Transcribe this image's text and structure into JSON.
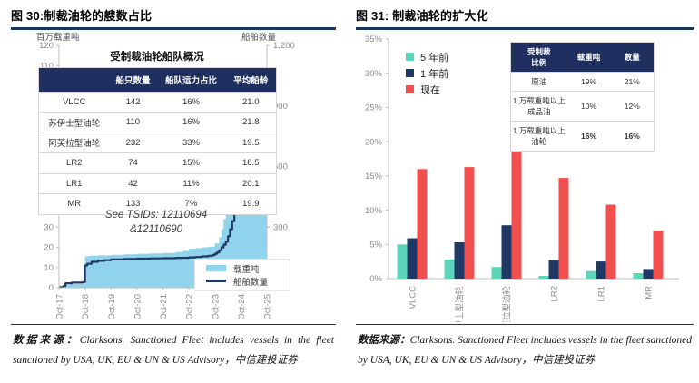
{
  "figures": {
    "left": {
      "title": "图 30:制裁油轮的艘数占比",
      "source_label": "数据来源：",
      "source_text": "Clarksons. Sanctioned Fleet includes vessels in the fleet sanctioned by USA, UK, EU & UN & US Advisory，中信建投证券"
    },
    "right": {
      "title": "图 31: 制裁油轮的扩大化",
      "source_label": "数据来源：",
      "source_text": "Clarksons. Sanctioned Fleet includes vessels in the fleet sanctioned by USA, UK, EU & UN & US Advisory，中信建投证券"
    }
  },
  "colors": {
    "navy": "#1F3864",
    "table_header_navy": "#1F3060",
    "light_blue": "#8FD4EC",
    "teal": "#5CD6B9",
    "red": "#F1504E",
    "title_rule": "#17375E",
    "axis_gray": "#BFBFBF",
    "tick_gray": "#8C8C8C"
  },
  "chart_data": [
    {
      "type": "area",
      "title": "制裁油轮的艘数占比",
      "left_axis": {
        "label": "百万载重吨",
        "lim": [
          0,
          120
        ],
        "ticks": [
          0,
          10,
          20,
          30,
          40,
          50,
          60,
          70,
          80,
          90,
          100,
          110,
          120
        ]
      },
      "right_axis": {
        "label": "船舶数量",
        "lim": [
          0,
          1200
        ],
        "ticks": [
          {
            "v": 0,
            "label": "0"
          },
          {
            "v": 300,
            "label": "300"
          },
          {
            "v": 600,
            "label": "600"
          },
          {
            "v": 900,
            "label": "900"
          },
          {
            "v": 1200,
            "label": "1,200"
          }
        ]
      },
      "x_axis": {
        "range_months": [
          0,
          96
        ],
        "ticks": [
          {
            "m": 0,
            "label": "Oct-17"
          },
          {
            "m": 12,
            "label": "Oct-18"
          },
          {
            "m": 24,
            "label": "Oct-19"
          },
          {
            "m": 36,
            "label": "Oct-20"
          },
          {
            "m": 48,
            "label": "Oct-21"
          },
          {
            "m": 60,
            "label": "Oct-22"
          },
          {
            "m": 72,
            "label": "Oct-23"
          },
          {
            "m": 84,
            "label": "Oct-24"
          },
          {
            "m": 96,
            "label": "Oct-25"
          }
        ]
      },
      "series": [
        {
          "name": "载重吨",
          "kind": "area",
          "axis": "left",
          "color": "#8FD4EC",
          "x": [
            0,
            2,
            3,
            5,
            11,
            12,
            14,
            18,
            24,
            30,
            36,
            42,
            48,
            54,
            57,
            60,
            63,
            66,
            69,
            72,
            74,
            75,
            76,
            77,
            78,
            79,
            80,
            81,
            82,
            83,
            84,
            86,
            88,
            90,
            93,
            96
          ],
          "values": [
            0.5,
            0.8,
            1.5,
            1.8,
            2.0,
            15.5,
            15.8,
            16.0,
            16.3,
            16.5,
            16.8,
            17.0,
            17.2,
            17.6,
            18.2,
            19.3,
            19.6,
            20.0,
            20.3,
            22.0,
            25.0,
            29.0,
            34.0,
            42.0,
            50.0,
            58.0,
            65.0,
            72.0,
            78.0,
            83.0,
            88.0,
            93.0,
            96.0,
            99.0,
            101.0,
            102.0
          ]
        },
        {
          "name": "船舶数量",
          "kind": "line",
          "axis": "right",
          "color": "#1F3864",
          "x": [
            0,
            2,
            3,
            6,
            11,
            12,
            13,
            15,
            18,
            21,
            24,
            30,
            36,
            42,
            48,
            54,
            60,
            63,
            66,
            69,
            71,
            72,
            73,
            74,
            75,
            76,
            77,
            78,
            79,
            80,
            81,
            82,
            83,
            84,
            85,
            86,
            87,
            88,
            89,
            90,
            91,
            92,
            93,
            94,
            95,
            96
          ],
          "values": [
            3,
            8,
            22,
            25,
            28,
            110,
            118,
            128,
            133,
            136,
            140,
            142,
            144,
            145,
            146,
            148,
            150,
            152,
            155,
            158,
            162,
            168,
            175,
            185,
            200,
            213,
            228,
            255,
            290,
            330,
            375,
            425,
            468,
            515,
            555,
            598,
            638,
            675,
            710,
            740,
            770,
            800,
            828,
            852,
            872,
            905
          ]
        }
      ],
      "legend": [
        {
          "label": "载重吨",
          "swatch": "area",
          "color": "#8FD4EC"
        },
        {
          "label": "船舶数量",
          "swatch": "line",
          "color": "#1F3864"
        }
      ],
      "annotation": "See TSIDs: 12110694\n&12110690",
      "inner_table": {
        "title": "受制裁油轮船队概况",
        "headers": [
          "",
          "船只数量",
          "船队运力占比",
          "平均船龄"
        ],
        "rows": [
          [
            "VLCC",
            "142",
            "16%",
            "21.0"
          ],
          [
            "苏伊士型油轮",
            "110",
            "16%",
            "21.8"
          ],
          [
            "阿芙拉型油轮",
            "232",
            "33%",
            "19.5"
          ],
          [
            "LR2",
            "74",
            "15%",
            "18.5"
          ],
          [
            "LR1",
            "42",
            "11%",
            "20.1"
          ],
          [
            "MR",
            "133",
            "7%",
            "19.9"
          ]
        ]
      }
    },
    {
      "type": "bar",
      "title": "制裁油轮的扩大化",
      "ylim": [
        0,
        35
      ],
      "yticks": [
        {
          "v": 0,
          "label": "0%"
        },
        {
          "v": 5,
          "label": "5%"
        },
        {
          "v": 10,
          "label": "10%"
        },
        {
          "v": 15,
          "label": "15%"
        },
        {
          "v": 20,
          "label": "20%"
        },
        {
          "v": 25,
          "label": "25%"
        },
        {
          "v": 30,
          "label": "30%"
        },
        {
          "v": 35,
          "label": "35%"
        }
      ],
      "categories": [
        "VLCC",
        "苏伊士型油轮",
        "阿芙拉型油轮",
        "LR2",
        "LR1",
        "MR"
      ],
      "series": [
        {
          "name": "5 年前",
          "color": "#5CD6B9",
          "values": [
            5.0,
            2.8,
            1.7,
            0.4,
            1.1,
            0.8
          ]
        },
        {
          "name": "1 年前",
          "color": "#1F3864",
          "values": [
            5.9,
            5.3,
            7.8,
            2.7,
            2.5,
            1.4
          ]
        },
        {
          "name": "现在",
          "color": "#F1504E",
          "values": [
            16.0,
            16.3,
            33.0,
            14.7,
            10.8,
            7.0
          ]
        }
      ],
      "legend_position": "top-left",
      "grid": false,
      "inner_table": {
        "headers": [
          "受制裁\n比例",
          "载重吨",
          "数量"
        ],
        "rows": [
          [
            "原油",
            "19%",
            "21%"
          ],
          [
            "1 万载重吨以上\n成品油",
            "10%",
            "12%"
          ],
          [
            "1 万载重吨以上\n油轮",
            "16%",
            "16%"
          ]
        ],
        "bold_row_index": 2
      }
    }
  ]
}
